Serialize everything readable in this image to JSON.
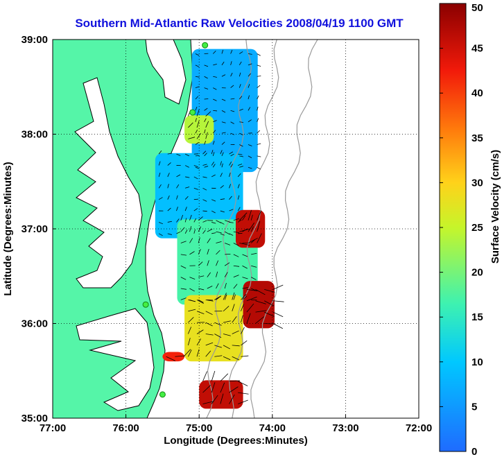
{
  "chart_data": {
    "type": "heatmap",
    "title": "Southern Mid-Atlantic Raw Velocities 2008/04/19 1100 GMT",
    "xlabel": "Longitude (Degrees:Minutes)",
    "ylabel": "Latitude (Degrees:Minutes)",
    "xlim": [
      -77,
      -72
    ],
    "ylim": [
      35,
      39
    ],
    "x_ticks": [
      {
        "value": -77,
        "label": "77:00"
      },
      {
        "value": -76,
        "label": "76:00"
      },
      {
        "value": -75,
        "label": "75:00"
      },
      {
        "value": -74,
        "label": "74:00"
      },
      {
        "value": -73,
        "label": "73:00"
      },
      {
        "value": -72,
        "label": "72:00"
      }
    ],
    "y_ticks": [
      {
        "value": 35,
        "label": "35:00"
      },
      {
        "value": 36,
        "label": "36:00"
      },
      {
        "value": 37,
        "label": "37:00"
      },
      {
        "value": 38,
        "label": "38:00"
      },
      {
        "value": 39,
        "label": "39:00"
      }
    ],
    "grid": "dotted",
    "colorbar": {
      "label": "Surface Velocity (cm/s)",
      "min": 0,
      "max": 50,
      "ticks": [
        0,
        5,
        10,
        15,
        20,
        25,
        30,
        35,
        40,
        45,
        50
      ],
      "position": "right"
    },
    "colors": {
      "land": "#55f5a8",
      "water": "#ffffff",
      "title": "#1010dd",
      "station": "#44ee44",
      "bathymetry": "#999999"
    },
    "stations": [
      {
        "lon": -74.92,
        "lat": 38.94
      },
      {
        "lon": -75.09,
        "lat": 38.23
      },
      {
        "lon": -75.73,
        "lat": 36.2
      },
      {
        "lon": -75.5,
        "lat": 35.25
      }
    ],
    "velocity_regions": [
      {
        "lon": [
          -75.1,
          -74.2
        ],
        "lat": [
          37.6,
          38.9
        ],
        "speed": 7
      },
      {
        "lon": [
          -75.6,
          -74.4
        ],
        "lat": [
          36.9,
          37.8
        ],
        "speed": 9
      },
      {
        "lon": [
          -75.3,
          -74.2
        ],
        "lat": [
          36.2,
          37.1
        ],
        "speed": 17
      },
      {
        "lon": [
          -75.2,
          -74.4
        ],
        "lat": [
          35.6,
          36.3
        ],
        "speed": 28
      },
      {
        "lon": [
          -74.4,
          -73.97
        ],
        "lat": [
          35.95,
          36.45
        ],
        "speed": 47
      },
      {
        "lon": [
          -74.5,
          -74.1
        ],
        "lat": [
          36.8,
          37.2
        ],
        "speed": 46
      },
      {
        "lon": [
          -75.0,
          -74.4
        ],
        "lat": [
          35.1,
          35.4
        ],
        "speed": 46
      },
      {
        "lon": [
          -75.5,
          -75.2
        ],
        "lat": [
          35.6,
          35.7
        ],
        "speed": 42
      },
      {
        "lon": [
          -75.2,
          -74.8
        ],
        "lat": [
          37.9,
          38.2
        ],
        "speed": 24
      }
    ]
  }
}
